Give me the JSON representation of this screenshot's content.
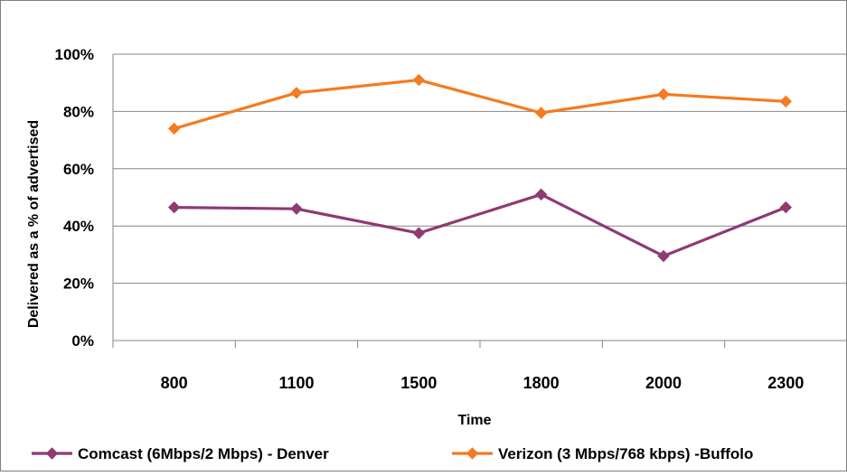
{
  "chart_data": {
    "type": "line",
    "title": "",
    "xlabel": "Time",
    "ylabel": "Delivered as a % of advertised",
    "categories": [
      "800",
      "1100",
      "1500",
      "1800",
      "2000",
      "2300"
    ],
    "y_ticks": [
      "0%",
      "20%",
      "40%",
      "60%",
      "80%",
      "100%"
    ],
    "ylim": [
      0,
      100
    ],
    "grid": true,
    "legend_position": "bottom",
    "series": [
      {
        "name": "Comcast (6Mbps/2 Mbps) - Denver",
        "color": "#8e3a73",
        "marker": "diamond",
        "values": [
          46.5,
          46,
          37.5,
          51,
          29.5,
          46.5
        ]
      },
      {
        "name": "Verizon (3 Mbps/768 kbps) -Buffolo",
        "color": "#f47b20",
        "marker": "diamond",
        "values": [
          74,
          86.5,
          91,
          79.5,
          86,
          83.5
        ]
      }
    ]
  }
}
